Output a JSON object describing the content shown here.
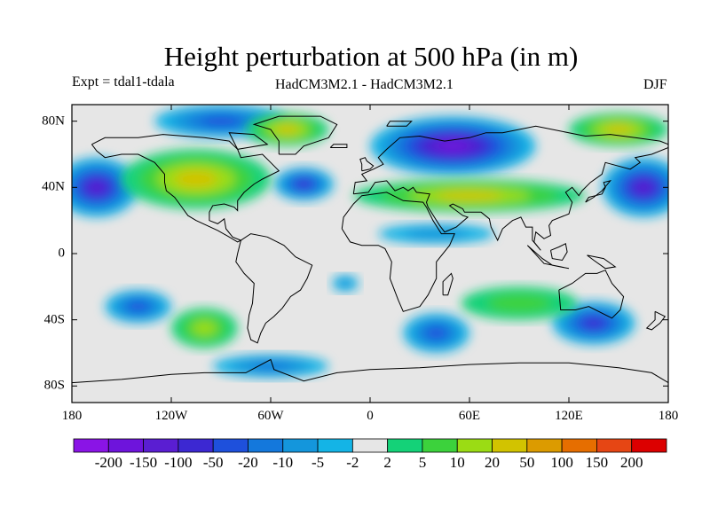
{
  "title": "Height perturbation at 500 hPa (in m)",
  "subtitle_left": "Expt = tdal1-tdala",
  "subtitle_center": "HadCM3M2.1 - HadCM3M2.1",
  "subtitle_right": "DJF",
  "map": {
    "lon_range": [
      -180,
      180
    ],
    "lat_range": [
      -90,
      90
    ],
    "x_ticks": [
      {
        "lon": -180,
        "label": "180"
      },
      {
        "lon": -120,
        "label": "120W"
      },
      {
        "lon": -60,
        "label": "60W"
      },
      {
        "lon": 0,
        "label": "0"
      },
      {
        "lon": 60,
        "label": "60E"
      },
      {
        "lon": 120,
        "label": "120E"
      },
      {
        "lon": 180,
        "label": "180"
      }
    ],
    "y_ticks": [
      {
        "lat": 80,
        "label": "80N"
      },
      {
        "lat": 40,
        "label": "40N"
      },
      {
        "lat": 0,
        "label": "0"
      },
      {
        "lat": -40,
        "label": "40S"
      },
      {
        "lat": -80,
        "label": "80S"
      }
    ],
    "colors": {
      "ocean_neutral": "#e6e6e6",
      "coast": "#000000",
      "frame": "#000000"
    }
  },
  "colorbar": {
    "levels": [
      "-200",
      "-150",
      "-100",
      "-50",
      "-20",
      "-10",
      "-5",
      "-2",
      "2",
      "5",
      "10",
      "20",
      "50",
      "100",
      "150",
      "200"
    ],
    "colors": [
      "#8a14e6",
      "#6e14dc",
      "#5a1ed2",
      "#3c28d2",
      "#1e50dc",
      "#1478dc",
      "#1496dc",
      "#14b4e6",
      "#e6e6e6",
      "#14d278",
      "#3cd23c",
      "#9bdc14",
      "#d2c300",
      "#dc9b00",
      "#e66e00",
      "#e64614",
      "#dc0000"
    ]
  },
  "features": [
    {
      "kind": "neg",
      "lon": -165,
      "lat": 40,
      "rx": 25,
      "ry": 18,
      "level": 5
    },
    {
      "kind": "neg",
      "lon": 165,
      "lat": 40,
      "rx": 25,
      "ry": 18,
      "level": 5
    },
    {
      "kind": "neg",
      "lon": 50,
      "lat": 65,
      "rx": 50,
      "ry": 18,
      "level": 6
    },
    {
      "kind": "neg",
      "lon": -40,
      "lat": 42,
      "rx": 18,
      "ry": 10,
      "level": 4
    },
    {
      "kind": "neg",
      "lon": -90,
      "lat": 80,
      "rx": 40,
      "ry": 10,
      "level": 3
    },
    {
      "kind": "neg",
      "lon": -140,
      "lat": -32,
      "rx": 20,
      "ry": 10,
      "level": 3
    },
    {
      "kind": "neg",
      "lon": 40,
      "lat": -48,
      "rx": 20,
      "ry": 12,
      "level": 3
    },
    {
      "kind": "neg",
      "lon": 135,
      "lat": -42,
      "rx": 25,
      "ry": 13,
      "level": 4
    },
    {
      "kind": "neg",
      "lon": -60,
      "lat": -68,
      "rx": 35,
      "ry": 7,
      "level": 2
    },
    {
      "kind": "neg",
      "lon": -15,
      "lat": -18,
      "rx": 8,
      "ry": 5,
      "level": 1
    },
    {
      "kind": "neg",
      "lon": 40,
      "lat": 12,
      "rx": 35,
      "ry": 6,
      "level": 1
    },
    {
      "kind": "pos",
      "lon": -105,
      "lat": 45,
      "rx": 45,
      "ry": 18,
      "level": 3
    },
    {
      "kind": "pos",
      "lon": 60,
      "lat": 35,
      "rx": 70,
      "ry": 10,
      "level": 3
    },
    {
      "kind": "pos",
      "lon": -50,
      "lat": 75,
      "rx": 25,
      "ry": 10,
      "level": 3
    },
    {
      "kind": "pos",
      "lon": 150,
      "lat": 75,
      "rx": 30,
      "ry": 10,
      "level": 3
    },
    {
      "kind": "pos",
      "lon": -100,
      "lat": -45,
      "rx": 20,
      "ry": 12,
      "level": 2
    },
    {
      "kind": "pos",
      "lon": 90,
      "lat": -30,
      "rx": 35,
      "ry": 10,
      "level": 1
    }
  ]
}
